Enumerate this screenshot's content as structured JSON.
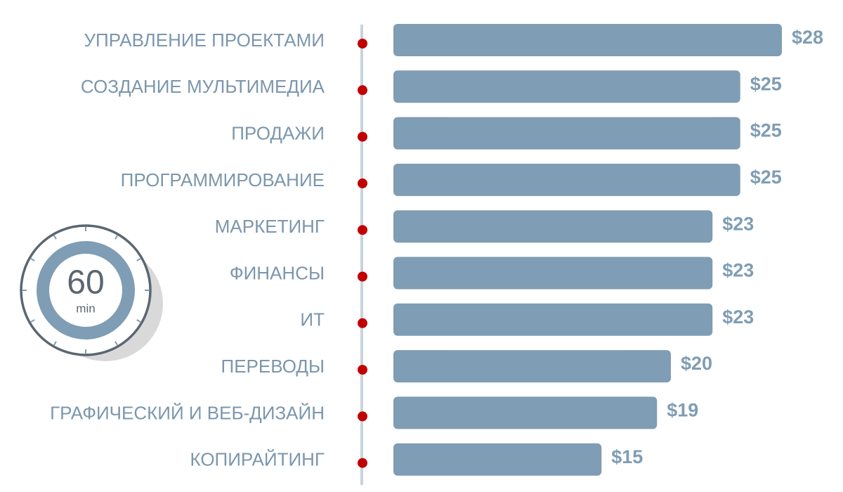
{
  "chart_data": {
    "type": "bar",
    "orientation": "horizontal",
    "categories": [
      "УПРАВЛЕНИЕ ПРОЕКТАМИ",
      "СОЗДАНИЕ МУЛЬТИМЕДИА",
      "ПРОДАЖИ",
      "ПРОГРАММИРОВАНИЕ",
      "МАРКЕТИНГ",
      "ФИНАНСЫ",
      "ИТ",
      "ПЕРЕВОДЫ",
      "ГРАФИЧЕСКИЙ И ВЕБ-ДИЗАЙН",
      "КОПИРАЙТИНГ"
    ],
    "values": [
      28,
      25,
      25,
      25,
      23,
      23,
      23,
      20,
      19,
      15
    ],
    "value_labels": [
      "$28",
      "$25",
      "$25",
      "$25",
      "$23",
      "$23",
      "$23",
      "$20",
      "$19",
      "$15"
    ],
    "color": "#7f9db4",
    "marker_color": "#c00000",
    "annotations": [
      "60",
      "min"
    ]
  }
}
